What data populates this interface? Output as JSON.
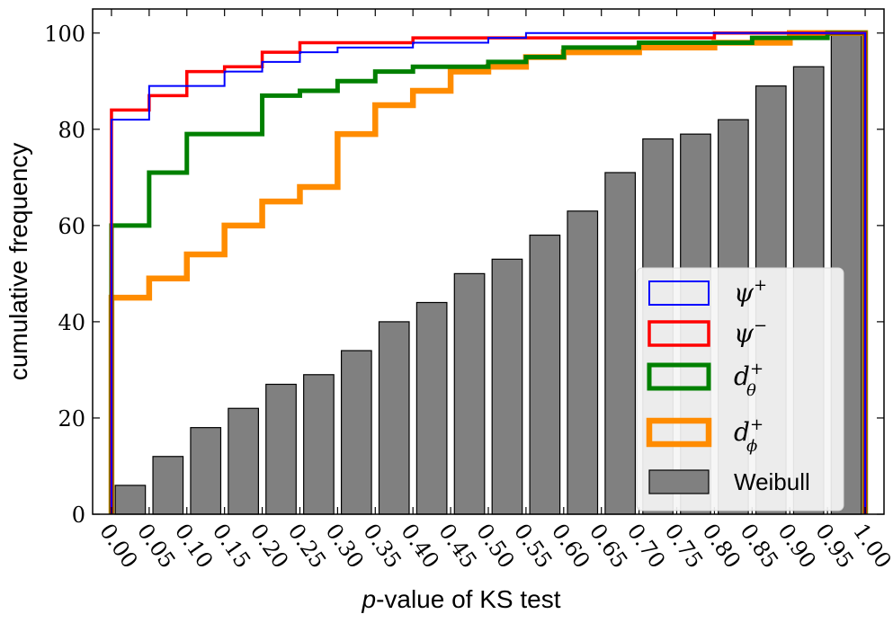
{
  "chart_data": {
    "type": "bar",
    "xlabel_italic": "p",
    "xlabel_rest": "-value of KS test",
    "ylabel": "cumulative frequency",
    "xlim": [
      -0.025,
      1.025
    ],
    "ylim": [
      0,
      105
    ],
    "x_ticks": [
      "0.00",
      "0.05",
      "0.10",
      "0.15",
      "0.20",
      "0.25",
      "0.30",
      "0.35",
      "0.40",
      "0.45",
      "0.50",
      "0.55",
      "0.60",
      "0.65",
      "0.70",
      "0.75",
      "0.80",
      "0.85",
      "0.90",
      "0.95",
      "1.00"
    ],
    "y_ticks": [
      "0",
      "20",
      "40",
      "60",
      "80",
      "100"
    ],
    "bars": {
      "name": "Weibull",
      "color": "#808080",
      "x": [
        0.025,
        0.075,
        0.125,
        0.175,
        0.225,
        0.275,
        0.325,
        0.375,
        0.425,
        0.475,
        0.525,
        0.575,
        0.625,
        0.675,
        0.725,
        0.775,
        0.825,
        0.875,
        0.925,
        0.975
      ],
      "values": [
        6,
        12,
        18,
        22,
        27,
        29,
        34,
        40,
        44,
        50,
        53,
        58,
        63,
        71,
        78,
        79,
        82,
        89,
        93,
        100
      ]
    },
    "series": [
      {
        "name": "psi-plus",
        "color": "#0000ff",
        "width": 2,
        "x": [
          0.0,
          0.05,
          0.1,
          0.15,
          0.2,
          0.25,
          0.3,
          0.35,
          0.4,
          0.45,
          0.5,
          0.55,
          0.6,
          0.65,
          0.7,
          0.75,
          0.8,
          0.85,
          0.9,
          0.95,
          1.0
        ],
        "values": [
          82,
          89,
          89,
          92,
          94,
          96,
          97,
          97,
          98,
          98,
          99,
          100,
          100,
          100,
          100,
          100,
          100,
          100,
          100,
          100,
          100
        ]
      },
      {
        "name": "psi-minus",
        "color": "#ff0000",
        "width": 3.5,
        "x": [
          0.0,
          0.05,
          0.1,
          0.15,
          0.2,
          0.25,
          0.3,
          0.35,
          0.4,
          0.45,
          0.5,
          0.55,
          0.6,
          0.65,
          0.7,
          0.75,
          0.8,
          0.85,
          0.9,
          0.95,
          1.0
        ],
        "values": [
          84,
          87,
          92,
          93,
          96,
          98,
          98,
          98,
          99,
          99,
          99,
          99,
          99,
          99,
          99,
          99,
          100,
          100,
          100,
          100,
          100
        ]
      },
      {
        "name": "d-theta-plus",
        "color": "#008000",
        "width": 5,
        "x": [
          0.0,
          0.05,
          0.1,
          0.15,
          0.2,
          0.25,
          0.3,
          0.35,
          0.4,
          0.45,
          0.5,
          0.55,
          0.6,
          0.65,
          0.7,
          0.75,
          0.8,
          0.85,
          0.9,
          0.95,
          1.0
        ],
        "values": [
          60,
          71,
          79,
          79,
          87,
          88,
          90,
          92,
          93,
          93,
          94,
          95,
          97,
          97,
          98,
          98,
          98,
          99,
          99,
          100,
          100
        ]
      },
      {
        "name": "d-phi-plus",
        "color": "#ff8c00",
        "width": 6.5,
        "x": [
          0.0,
          0.05,
          0.1,
          0.15,
          0.2,
          0.25,
          0.3,
          0.35,
          0.4,
          0.45,
          0.5,
          0.55,
          0.6,
          0.65,
          0.7,
          0.75,
          0.8,
          0.85,
          0.9,
          0.95,
          1.0
        ],
        "values": [
          45,
          49,
          54,
          60,
          65,
          68,
          79,
          85,
          88,
          92,
          93,
          95,
          96,
          96,
          97,
          97,
          98,
          98,
          100,
          100,
          100
        ]
      }
    ],
    "step_first_values": {
      "psi-plus": 60,
      "psi-minus": 60,
      "d-theta-plus": 25,
      "d-phi-plus": 0
    },
    "legend": {
      "placement": "bottom-right",
      "entries": [
        {
          "key": "psi-plus",
          "symbol": "ψ",
          "sup": "+",
          "sub": ""
        },
        {
          "key": "psi-minus",
          "symbol": "ψ",
          "sup": "−",
          "sub": ""
        },
        {
          "key": "d-theta-plus",
          "symbol": "d",
          "sup": "+",
          "sub": "θ"
        },
        {
          "key": "d-phi-plus",
          "symbol": "d",
          "sup": "+",
          "sub": "ϕ"
        },
        {
          "key": "weibull",
          "symbol": "Weibull",
          "sup": "",
          "sub": ""
        }
      ]
    }
  }
}
